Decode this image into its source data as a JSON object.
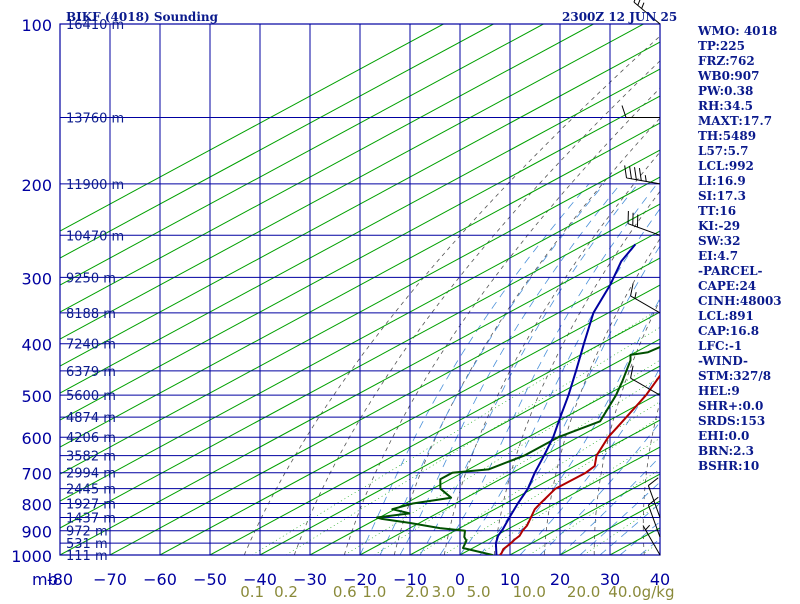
{
  "header": {
    "station_title": "BIKF (4018) Sounding",
    "valid_time": "2300Z 12 JUN 25"
  },
  "colors": {
    "axis_blue": "#0000a0",
    "isotherm_green": "#00a000",
    "temperature_red": "#b00000",
    "dewpoint_green": "#005000",
    "parcel_blue": "#0000a0",
    "dry_adiabat": "#555555",
    "moist_adiabat": "#4a90d9",
    "mixing_ratio": "#00a000",
    "label_text": "#0a1a8c",
    "mixing_label_text": "#8a8a3a"
  },
  "indices": [
    "WMO: 4018",
    "TP:225",
    "FRZ:762",
    "WB0:907",
    "PW:0.38",
    "RH:34.5",
    "MAXT:17.7",
    "TH:5489",
    "L57:5.7",
    "LCL:992",
    "LI:16.9",
    "SI:17.3",
    "TT:16",
    "KI:-29",
    "SW:32",
    "EI:4.7",
    "-PARCEL-",
    "CAPE:24",
    "CINH:48003",
    "LCL:891",
    "CAP:16.8",
    "LFC:-1",
    "-WIND-",
    "STM:327/8",
    "HEL:9",
    "SHR+:0.0",
    "SRDS:153",
    "EHI:0.0",
    "BRN:2.3",
    "BSHR:10"
  ],
  "chart_data": {
    "type": "line",
    "subtype": "skew-T log-P sounding",
    "xlabel": "",
    "ylabel": "mb",
    "xlim": [
      -80,
      40
    ],
    "ylim": [
      1000,
      100
    ],
    "y_scale": "log",
    "grid": true,
    "pressure_ticks": [
      100,
      200,
      300,
      400,
      500,
      600,
      700,
      800,
      900,
      1000
    ],
    "temperature_ticks": [
      -80,
      -70,
      -60,
      -50,
      -40,
      -30,
      -20,
      -10,
      0,
      10,
      20,
      30,
      40
    ],
    "temperature_tick_labels": [
      "-80",
      "−70",
      "−60",
      "−50",
      "−40",
      "−30",
      "−20",
      "−10",
      "0",
      "10",
      "20",
      "30",
      "40"
    ],
    "mixing_ratio_labels": [
      "0.1",
      "0.2",
      "0.6",
      "1.0",
      "2.0",
      "3.0",
      "5.0",
      "10.0",
      "20.0",
      "40.0"
    ],
    "mixing_ratio_unit": "g/kg",
    "mixing_ratio_values": [
      0.1,
      0.2,
      0.6,
      1.0,
      2.0,
      3.0,
      5.0,
      10.0,
      20.0,
      40.0
    ],
    "heights": [
      {
        "p": 100,
        "label": "16410 m"
      },
      {
        "p": 150,
        "label": "13760 m"
      },
      {
        "p": 200,
        "label": "11900 m"
      },
      {
        "p": 250,
        "label": "10470 m"
      },
      {
        "p": 300,
        "label": "9250 m"
      },
      {
        "p": 350,
        "label": "8188 m"
      },
      {
        "p": 400,
        "label": "7240 m"
      },
      {
        "p": 450,
        "label": "6379 m"
      },
      {
        "p": 500,
        "label": "5600 m"
      },
      {
        "p": 550,
        "label": "4874 m"
      },
      {
        "p": 600,
        "label": "4206 m"
      },
      {
        "p": 650,
        "label": "3582 m"
      },
      {
        "p": 700,
        "label": "2994 m"
      },
      {
        "p": 750,
        "label": "2445 m"
      },
      {
        "p": 800,
        "label": "1927 m"
      },
      {
        "p": 850,
        "label": "1437 m"
      },
      {
        "p": 900,
        "label": "972 m"
      },
      {
        "p": 950,
        "label": "531 m"
      },
      {
        "p": 1000,
        "label": "111 m"
      }
    ],
    "series": [
      {
        "key": "temperature",
        "points": [
          [
            1014,
            8.5
          ],
          [
            1000,
            8.0
          ],
          [
            990,
            7.5
          ],
          [
            975,
            6.5
          ],
          [
            950,
            5.8
          ],
          [
            935,
            5.2
          ],
          [
            920,
            4.8
          ],
          [
            900,
            3.5
          ],
          [
            880,
            2.5
          ],
          [
            850,
            0.3
          ],
          [
            820,
            -2.0
          ],
          [
            800,
            -3.0
          ],
          [
            750,
            -5.5
          ],
          [
            700,
            -5.3
          ],
          [
            680,
            -6.0
          ],
          [
            650,
            -9.5
          ],
          [
            600,
            -14.0
          ],
          [
            560,
            -17.0
          ],
          [
            500,
            -22.0
          ],
          [
            450,
            -27.5
          ],
          [
            400,
            -34.5
          ],
          [
            350,
            -41.5
          ],
          [
            320,
            -46.0
          ],
          [
            300,
            -48.5
          ],
          [
            280,
            -51.0
          ],
          [
            260,
            -53.8
          ],
          [
            250,
            -55.0
          ],
          [
            232,
            -56.5
          ],
          [
            227,
            -57.3
          ],
          [
            224,
            -55.8
          ],
          [
            215,
            -54.0
          ],
          [
            160,
            -55.5
          ],
          [
            100,
            -58.5
          ]
        ]
      },
      {
        "key": "dewpoint",
        "points": [
          [
            1014,
            7.7
          ],
          [
            1000,
            6.5
          ],
          [
            970,
            -2.0
          ],
          [
            940,
            -4.0
          ],
          [
            925,
            -5.8
          ],
          [
            900,
            -8.0
          ],
          [
            890,
            -14.0
          ],
          [
            870,
            -22.0
          ],
          [
            855,
            -29.0
          ],
          [
            850,
            -30.5
          ],
          [
            835,
            -25.5
          ],
          [
            820,
            -30.5
          ],
          [
            800,
            -28.5
          ],
          [
            780,
            -23.0
          ],
          [
            750,
            -28.5
          ],
          [
            720,
            -32.0
          ],
          [
            700,
            -32.0
          ],
          [
            690,
            -26.0
          ],
          [
            650,
            -24.0
          ],
          [
            600,
            -24.0
          ],
          [
            560,
            -21.5
          ],
          [
            500,
            -28.0
          ],
          [
            470,
            -32.0
          ],
          [
            430,
            -38.0
          ],
          [
            420,
            -40.0
          ],
          [
            415,
            -37.5
          ],
          [
            405,
            -37.0
          ],
          [
            390,
            -40.0
          ],
          [
            350,
            -42.0
          ],
          [
            320,
            -45.5
          ],
          [
            305,
            -48.0
          ],
          [
            280,
            -51.0
          ],
          [
            255,
            -52.5
          ],
          [
            235,
            -54.5
          ],
          [
            220,
            -55.5
          ],
          [
            205,
            -62.0
          ],
          [
            195,
            -68.0
          ],
          [
            188,
            -72.0
          ],
          [
            170,
            -80.0
          ]
        ]
      },
      {
        "key": "parcel",
        "points": [
          [
            1014,
            8.5
          ],
          [
            950,
            2.8
          ],
          [
            920,
            0.5
          ],
          [
            891,
            -1.2
          ],
          [
            850,
            -4.0
          ],
          [
            800,
            -7.5
          ],
          [
            750,
            -11.0
          ],
          [
            700,
            -15.5
          ],
          [
            650,
            -20.0
          ],
          [
            600,
            -25.0
          ],
          [
            550,
            -31.0
          ],
          [
            500,
            -37.5
          ],
          [
            450,
            -45.0
          ],
          [
            400,
            -53.5
          ],
          [
            350,
            -63.0
          ],
          [
            310,
            -70.0
          ],
          [
            280,
            -76.5
          ],
          [
            260,
            -80.0
          ]
        ]
      }
    ],
    "wind_barbs": [
      {
        "p": 100,
        "direction": 310,
        "speed_kt": 25
      },
      {
        "p": 150,
        "direction": 270,
        "speed_kt": 10
      },
      {
        "p": 200,
        "direction": 280,
        "speed_kt": 45
      },
      {
        "p": 250,
        "direction": 290,
        "speed_kt": 30
      },
      {
        "p": 350,
        "direction": 300,
        "speed_kt": 15
      },
      {
        "p": 500,
        "direction": 300,
        "speed_kt": 10
      },
      {
        "p": 850,
        "direction": 340,
        "speed_kt": 10
      },
      {
        "p": 925,
        "direction": 340,
        "speed_kt": 10
      },
      {
        "p": 1000,
        "direction": 330,
        "speed_kt": 5
      }
    ]
  }
}
